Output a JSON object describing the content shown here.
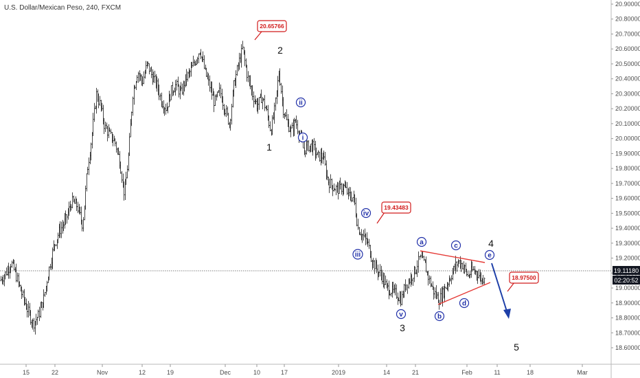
{
  "chart_data": {
    "type": "candlestick",
    "title": "U.S. Dollar/Mexican Peso, 240, FXCM",
    "y_ticks": [
      "20.90000",
      "20.80000",
      "20.70000",
      "20.60000",
      "20.50000",
      "20.40000",
      "20.30000",
      "20.20000",
      "20.10000",
      "20.00000",
      "19.90000",
      "19.80000",
      "19.70000",
      "19.60000",
      "19.50000",
      "19.40000",
      "19.30000",
      "19.20000",
      "19.10000",
      "19.00000",
      "18.90000",
      "18.80000",
      "18.70000",
      "18.60000"
    ],
    "ylim": [
      18.55,
      20.95
    ],
    "x_ticks": [
      "15",
      "22",
      "Nov",
      "12",
      "19",
      "Dec",
      "10",
      "17",
      "2019",
      "14",
      "21",
      "Feb",
      "11",
      "18",
      "Mar"
    ],
    "current_price": "19.11180",
    "countdown": "02:20:52",
    "accent_colors": {
      "callout": "#d11a1a",
      "wave_blue": "#1f2fa8",
      "price_tag": "#131722",
      "trendline": "#e53935",
      "arrow": "#1e3fa8"
    },
    "price_path": [
      [
        0,
        19.05
      ],
      [
        8,
        19.1
      ],
      [
        16,
        19.17
      ],
      [
        22,
        19.1
      ],
      [
        30,
        18.98
      ],
      [
        40,
        18.85
      ],
      [
        48,
        18.76
      ],
      [
        56,
        18.82
      ],
      [
        63,
        18.92
      ],
      [
        70,
        19.1
      ],
      [
        78,
        19.28
      ],
      [
        86,
        19.38
      ],
      [
        95,
        19.45
      ],
      [
        104,
        19.58
      ],
      [
        112,
        19.55
      ],
      [
        120,
        19.42
      ],
      [
        127,
        19.8
      ],
      [
        133,
        20.0
      ],
      [
        140,
        20.3
      ],
      [
        146,
        20.22
      ],
      [
        152,
        20.08
      ],
      [
        160,
        20.02
      ],
      [
        167,
        19.98
      ],
      [
        174,
        19.85
      ],
      [
        181,
        19.62
      ],
      [
        187,
        19.9
      ],
      [
        193,
        20.3
      ],
      [
        200,
        20.45
      ],
      [
        207,
        20.38
      ],
      [
        214,
        20.5
      ],
      [
        221,
        20.42
      ],
      [
        228,
        20.36
      ],
      [
        235,
        20.25
      ],
      [
        242,
        20.2
      ],
      [
        249,
        20.32
      ],
      [
        256,
        20.36
      ],
      [
        263,
        20.3
      ],
      [
        270,
        20.4
      ],
      [
        277,
        20.45
      ],
      [
        284,
        20.52
      ],
      [
        291,
        20.6
      ],
      [
        298,
        20.45
      ],
      [
        305,
        20.35
      ],
      [
        312,
        20.24
      ],
      [
        320,
        20.32
      ],
      [
        327,
        20.2
      ],
      [
        334,
        20.1
      ],
      [
        340,
        20.35
      ],
      [
        347,
        20.5
      ],
      [
        353,
        20.6
      ],
      [
        360,
        20.42
      ],
      [
        367,
        20.3
      ],
      [
        374,
        20.22
      ],
      [
        381,
        20.28
      ],
      [
        388,
        20.18
      ],
      [
        394,
        20.05
      ],
      [
        400,
        20.2
      ],
      [
        406,
        20.45
      ],
      [
        412,
        20.2
      ],
      [
        418,
        20.1
      ],
      [
        424,
        20.05
      ],
      [
        430,
        20.12
      ],
      [
        436,
        20.02
      ],
      [
        442,
        19.92
      ],
      [
        448,
        19.95
      ],
      [
        455,
        19.95
      ],
      [
        462,
        19.88
      ],
      [
        470,
        19.88
      ],
      [
        477,
        19.72
      ],
      [
        484,
        19.68
      ],
      [
        492,
        19.66
      ],
      [
        500,
        19.68
      ],
      [
        508,
        19.62
      ],
      [
        515,
        19.6
      ],
      [
        521,
        19.4
      ],
      [
        528,
        19.35
      ],
      [
        535,
        19.3
      ],
      [
        542,
        19.18
      ],
      [
        549,
        19.12
      ],
      [
        556,
        19.08
      ],
      [
        563,
        19.0
      ],
      [
        570,
        18.98
      ],
      [
        577,
        18.96
      ],
      [
        584,
        18.92
      ],
      [
        590,
        19.02
      ],
      [
        597,
        19.06
      ],
      [
        604,
        19.12
      ],
      [
        611,
        19.2
      ],
      [
        618,
        19.16
      ],
      [
        625,
        19.05
      ],
      [
        632,
        18.97
      ],
      [
        639,
        18.92
      ],
      [
        646,
        18.98
      ],
      [
        653,
        19.05
      ],
      [
        660,
        19.12
      ],
      [
        667,
        19.18
      ],
      [
        674,
        19.15
      ],
      [
        681,
        19.08
      ],
      [
        688,
        19.12
      ],
      [
        695,
        19.1
      ],
      [
        702,
        19.05
      ],
      [
        706,
        19.1
      ]
    ]
  },
  "callouts": [
    {
      "label": "20.65766"
    },
    {
      "label": "19.43483"
    },
    {
      "label": "18.97500"
    }
  ],
  "waves": {
    "black": [
      "1",
      "2",
      "3",
      "4",
      "5"
    ],
    "blue": [
      "i",
      "ii",
      "iii",
      "iv",
      "v",
      "a",
      "b",
      "c",
      "d",
      "e"
    ]
  }
}
